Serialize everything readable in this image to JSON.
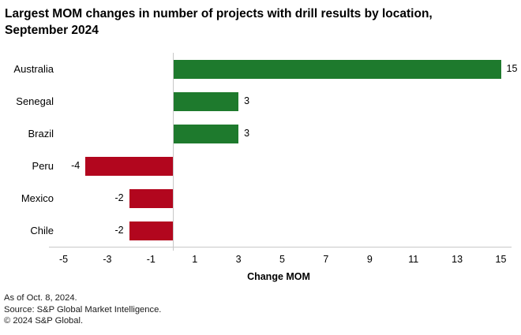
{
  "title": {
    "line1": "Largest MOM changes in number of projects with drill results by location,",
    "line2": "September 2024"
  },
  "chart_data": {
    "type": "bar",
    "orientation": "horizontal",
    "title": "Largest MOM changes in number of projects with drill results by location, September 2024",
    "categories": [
      "Australia",
      "Senegal",
      "Brazil",
      "Peru",
      "Mexico",
      "Chile"
    ],
    "values": [
      15,
      3,
      3,
      -4,
      -2,
      -2
    ],
    "xlabel": "Change MOM",
    "x_ticks": [
      -5,
      -3,
      -1,
      1,
      3,
      5,
      7,
      9,
      11,
      13,
      15
    ],
    "xlim": [
      -5.7,
      15.5
    ],
    "grid": false,
    "legend": false,
    "data_labels": [
      "15",
      "3",
      "3",
      "-4",
      "-2",
      "-2"
    ],
    "colors": {
      "positive": "#1e7a2d",
      "negative": "#b2061e",
      "axis_line": "#c8c8c8",
      "text": "#000000"
    }
  },
  "footer": {
    "line1": "As of Oct. 8, 2024.",
    "line2": "Source: S&P Global Market Intelligence.",
    "line3": "© 2024 S&P Global."
  }
}
